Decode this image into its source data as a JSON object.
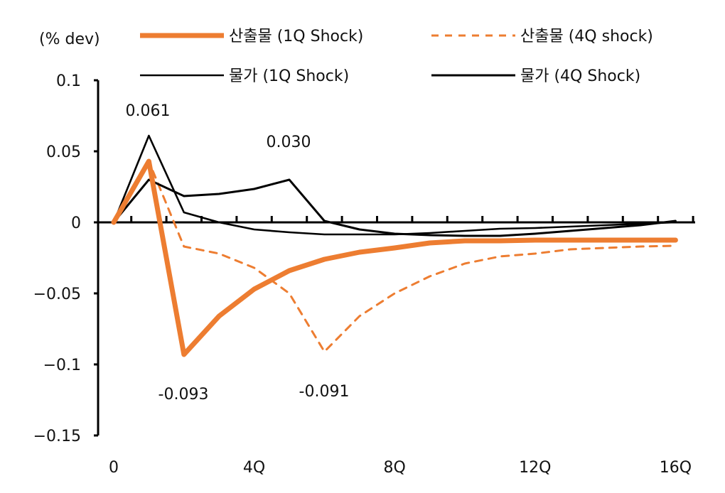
{
  "chart_data": {
    "type": "line",
    "ylabel": "(% dev)",
    "ylim": [
      -0.15,
      0.1
    ],
    "yticks": [
      "0.1",
      "0.05",
      "0",
      "-0.05",
      "-0.1",
      "-0.15"
    ],
    "ytick_values": [
      0.1,
      0.05,
      0,
      -0.05,
      -0.1,
      -0.15
    ],
    "x": [
      0,
      1,
      2,
      3,
      4,
      5,
      6,
      7,
      8,
      9,
      10,
      11,
      12,
      13,
      14,
      15,
      16
    ],
    "xticklabels": [
      {
        "x": 0,
        "label": "0"
      },
      {
        "x": 4,
        "label": "4Q"
      },
      {
        "x": 8,
        "label": "8Q"
      },
      {
        "x": 12,
        "label": "12Q"
      },
      {
        "x": 16,
        "label": "16Q"
      }
    ],
    "legend_placement": "top",
    "grid": false,
    "series": [
      {
        "name": "산출물 (1Q Shock)",
        "color": "#ED7D31",
        "style": "solid-thick",
        "values": [
          0,
          0.043,
          -0.093,
          -0.066,
          -0.047,
          -0.034,
          -0.026,
          -0.021,
          -0.018,
          -0.0145,
          -0.013,
          -0.013,
          -0.0125,
          -0.0125,
          -0.0125,
          -0.0125,
          -0.0125
        ]
      },
      {
        "name": "산출물 (4Q shock)",
        "color": "#ED7D31",
        "style": "dashed",
        "values": [
          0,
          0.043,
          -0.017,
          -0.022,
          -0.032,
          -0.05,
          -0.091,
          -0.066,
          -0.05,
          -0.038,
          -0.029,
          -0.024,
          -0.022,
          -0.019,
          -0.018,
          -0.017,
          -0.0165
        ]
      },
      {
        "name": "물가 (1Q Shock)",
        "color": "#000000",
        "style": "thin",
        "values": [
          0,
          0.061,
          0.007,
          0.0,
          -0.005,
          -0.007,
          -0.0085,
          -0.0085,
          -0.0085,
          -0.0075,
          -0.006,
          -0.0045,
          -0.004,
          -0.003,
          -0.002,
          -0.001,
          0.0
        ]
      },
      {
        "name": "물가 (4Q Shock)",
        "color": "#000000",
        "style": "normal",
        "values": [
          0,
          0.03,
          0.0185,
          0.02,
          0.0235,
          0.03,
          0.001,
          -0.005,
          -0.008,
          -0.009,
          -0.0095,
          -0.0095,
          -0.008,
          -0.006,
          -0.004,
          -0.002,
          0.001
        ]
      }
    ],
    "annotations": [
      {
        "text": "0.061",
        "x": 1,
        "y": 0.061
      },
      {
        "text": "0.030",
        "x": 5,
        "y": 0.03
      },
      {
        "text": "-0.093",
        "x": 2,
        "y": -0.093
      },
      {
        "text": "-0.091",
        "x": 6,
        "y": -0.091
      }
    ]
  }
}
